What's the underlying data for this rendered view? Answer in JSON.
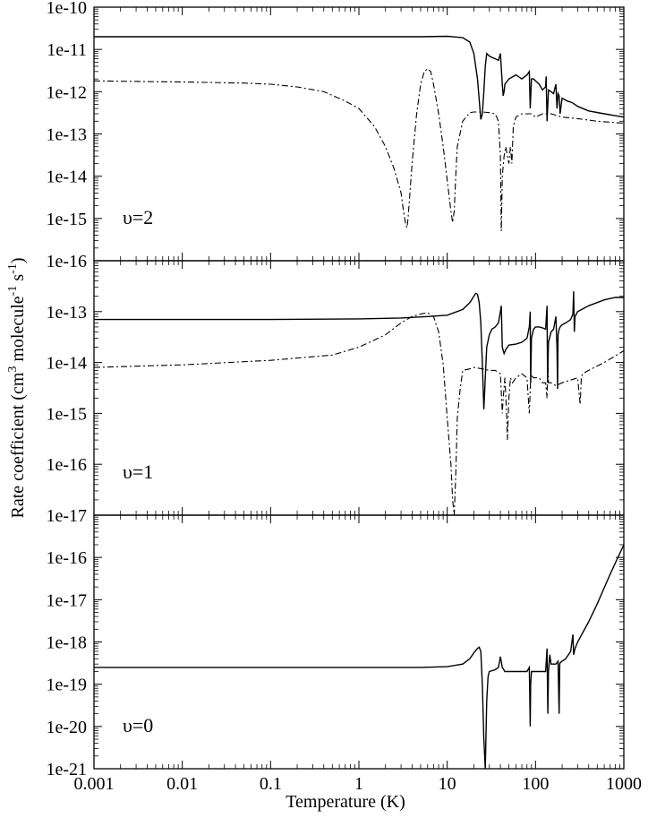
{
  "figure": {
    "ylabel_parts": [
      "Rate coefficient (cm",
      "3",
      " molecule",
      "-1",
      " s",
      "-1",
      ")"
    ]
  },
  "chart_data": [
    {
      "type": "line",
      "panel_label": "υ=2",
      "xlabel": "",
      "ylabel": "Rate coefficient (cm3 molecule-1 s-1)",
      "xscale": "log",
      "yscale": "log",
      "xlim": [
        0.001,
        1000
      ],
      "ylim": [
        1e-16,
        1e-10
      ],
      "ytick_labels": [
        "1e-16",
        "1e-15",
        "1e-14",
        "1e-13",
        "1e-12",
        "1e-11",
        "1e-10"
      ],
      "xtick_labels": [],
      "grid": false,
      "series": [
        {
          "style": "solid",
          "x": [
            0.001,
            0.01,
            0.1,
            1,
            5,
            10,
            15,
            18,
            20,
            22,
            24,
            25,
            26,
            27,
            28,
            30,
            32,
            35,
            38,
            40,
            42,
            43,
            44,
            45,
            50,
            60,
            70,
            80,
            85,
            87,
            90,
            95,
            100,
            110,
            120,
            130,
            132,
            135,
            140,
            150,
            160,
            170,
            175,
            180,
            185,
            190,
            200,
            230,
            260,
            300,
            400,
            600,
            1000
          ],
          "y": [
            2e-11,
            2e-11,
            2e-11,
            2e-11,
            2e-11,
            2.05e-11,
            1.9e-11,
            1.5e-11,
            8e-12,
            2e-12,
            2.2e-13,
            3e-13,
            1e-12,
            4e-12,
            8e-12,
            7e-12,
            6.5e-12,
            6e-12,
            5.5e-12,
            8e-12,
            1.5e-12,
            8e-13,
            1e-12,
            1.5e-12,
            2e-12,
            2.5e-12,
            2e-12,
            2.5e-12,
            3e-12,
            4e-13,
            2e-12,
            2e-12,
            1.8e-12,
            1.5e-12,
            1.1e-12,
            1.3e-12,
            2.3e-12,
            2e-13,
            1.1e-12,
            1e-12,
            9e-13,
            1.5e-12,
            4e-13,
            9e-13,
            8e-13,
            3e-13,
            7e-13,
            6e-13,
            5.5e-13,
            4.5e-13,
            3.5e-13,
            3e-13,
            2.5e-13
          ]
        },
        {
          "style": "dashdot",
          "x": [
            0.001,
            0.01,
            0.05,
            0.1,
            0.2,
            0.4,
            0.7,
            1,
            1.5,
            2,
            2.5,
            3,
            3.2,
            3.4,
            3.5,
            3.6,
            4,
            4.5,
            5,
            5.5,
            6,
            6.5,
            7,
            8,
            9,
            10,
            11,
            11.5,
            12,
            12.5,
            13,
            15,
            18,
            20,
            25,
            30,
            35,
            38,
            40,
            41,
            42,
            44,
            46,
            48,
            50,
            52,
            54,
            56,
            60,
            70,
            80,
            90,
            100,
            120,
            150,
            200,
            300,
            500,
            1000
          ],
          "y": [
            1.8e-12,
            1.7e-12,
            1.6e-12,
            1.5e-12,
            1.3e-12,
            1e-12,
            6e-13,
            4e-13,
            1.5e-13,
            5e-14,
            1.5e-14,
            4e-15,
            1.5e-15,
            7e-16,
            6e-16,
            1e-15,
            2e-14,
            3e-13,
            1.5e-12,
            3e-12,
            3.5e-12,
            3e-12,
            1.5e-12,
            3e-13,
            5e-14,
            8e-15,
            1.5e-15,
            8e-16,
            1.5e-15,
            1e-14,
            5e-14,
            2e-13,
            3.2e-13,
            3.3e-13,
            3.3e-13,
            3.2e-13,
            3e-13,
            2e-13,
            3e-14,
            5e-16,
            1e-14,
            3e-14,
            5e-14,
            3e-14,
            2e-14,
            5e-14,
            2e-14,
            1.5e-13,
            2.5e-13,
            3e-13,
            3e-13,
            3e-13,
            2.5e-13,
            3e-13,
            3e-13,
            2.5e-13,
            2.3e-13,
            2e-13,
            1.8e-13
          ]
        }
      ]
    },
    {
      "type": "line",
      "panel_label": "υ=1",
      "xlabel": "",
      "ylabel": "Rate coefficient (cm3 molecule-1 s-1)",
      "xscale": "log",
      "yscale": "log",
      "xlim": [
        0.001,
        1000
      ],
      "ylim": [
        1e-17,
        1e-12
      ],
      "ytick_labels": [
        "1e-17",
        "1e-16",
        "1e-15",
        "1e-14",
        "1e-13"
      ],
      "xtick_labels": [],
      "grid": false,
      "series": [
        {
          "style": "solid",
          "x": [
            0.001,
            0.01,
            0.1,
            1,
            3,
            6,
            10,
            15,
            18,
            20,
            21,
            22,
            23,
            24,
            25,
            26,
            27,
            28,
            30,
            32,
            35,
            38,
            40,
            41,
            42,
            44,
            46,
            50,
            60,
            70,
            80,
            85,
            87,
            88,
            90,
            95,
            100,
            110,
            120,
            130,
            135,
            137,
            140,
            150,
            160,
            170,
            175,
            178,
            180,
            185,
            190,
            200,
            220,
            250,
            265,
            270,
            275,
            280,
            300,
            400,
            600,
            800,
            1000
          ],
          "y": [
            7e-14,
            7e-14,
            7e-14,
            7.2e-14,
            7.5e-14,
            8e-14,
            8.5e-14,
            1.1e-13,
            1.5e-13,
            2e-13,
            2.3e-13,
            2.2e-13,
            1.5e-13,
            6e-14,
            1e-14,
            1.2e-15,
            5e-15,
            2e-14,
            3.5e-14,
            4.5e-14,
            5e-14,
            6e-14,
            1e-13,
            1.3e-13,
            2e-14,
            1.5e-14,
            1.8e-14,
            2.2e-14,
            2.3e-14,
            2.5e-14,
            3e-14,
            5e-14,
            1e-13,
            4e-15,
            3e-14,
            4.5e-14,
            5e-14,
            5e-14,
            4.8e-14,
            4.5e-14,
            1.3e-13,
            4e-15,
            2.5e-14,
            4e-14,
            4.5e-14,
            8e-14,
            2e-14,
            3e-15,
            3.5e-14,
            4.5e-14,
            5e-14,
            5.5e-14,
            6e-14,
            7e-14,
            9e-14,
            2.5e-13,
            4e-14,
            8e-14,
            1e-13,
            1.3e-13,
            1.7e-13,
            1.9e-13,
            1.9e-13
          ]
        },
        {
          "style": "dashdot",
          "x": [
            0.001,
            0.01,
            0.1,
            0.5,
            1,
            2,
            3,
            4,
            5,
            6,
            7,
            8,
            9,
            10,
            11,
            11.5,
            12,
            12.5,
            13,
            14,
            15,
            18,
            20,
            25,
            30,
            35,
            40,
            42,
            43,
            45,
            47,
            48,
            50,
            52,
            55,
            60,
            70,
            80,
            85,
            88,
            90,
            95,
            100,
            110,
            120,
            130,
            135,
            138,
            140,
            150,
            170,
            200,
            300,
            320,
            330,
            340,
            400,
            600,
            1000
          ],
          "y": [
            8e-15,
            9e-15,
            1.1e-14,
            1.4e-14,
            2e-14,
            3.5e-14,
            6e-14,
            8e-14,
            9e-14,
            9.5e-14,
            8e-14,
            4e-14,
            9e-15,
            8e-16,
            1e-16,
            2e-17,
            1e-17,
            6e-17,
            8e-16,
            3e-15,
            7e-15,
            7.5e-15,
            8e-15,
            7.5e-15,
            7e-15,
            7e-15,
            6e-15,
            1e-15,
            2e-15,
            5e-15,
            1e-15,
            3e-16,
            2e-15,
            5e-15,
            4e-15,
            5e-15,
            6e-15,
            5e-15,
            1e-15,
            5e-15,
            5.5e-15,
            5e-15,
            5e-15,
            5e-15,
            4e-15,
            4e-15,
            2e-15,
            1.2e-14,
            4e-15,
            4e-15,
            3.5e-15,
            4e-15,
            5e-15,
            1.5e-15,
            5e-15,
            6e-15,
            7e-15,
            1e-14,
            1.7e-14
          ]
        }
      ]
    },
    {
      "type": "line",
      "panel_label": "υ=0",
      "xlabel": "Temperature (K)",
      "ylabel": "Rate coefficient (cm3 molecule-1 s-1)",
      "xscale": "log",
      "yscale": "log",
      "xlim": [
        0.001,
        1000
      ],
      "ylim": [
        1e-21,
        1e-15
      ],
      "ytick_labels": [
        "1e-21",
        "1e-20",
        "1e-19",
        "1e-18",
        "1e-17",
        "1e-16"
      ],
      "xtick_labels": [
        "0.001",
        "0.01",
        "0.1",
        "1",
        "10",
        "100",
        "1000"
      ],
      "grid": false,
      "series": [
        {
          "style": "solid",
          "x": [
            0.001,
            0.01,
            0.1,
            1,
            5,
            10,
            15,
            18,
            20,
            22,
            23,
            24,
            25,
            26,
            27,
            28,
            29,
            30,
            35,
            38,
            40,
            42,
            45,
            50,
            60,
            70,
            80,
            85,
            87,
            88,
            90,
            95,
            100,
            110,
            120,
            130,
            135,
            138,
            140,
            145,
            150,
            160,
            170,
            180,
            185,
            188,
            190,
            200,
            220,
            250,
            265,
            270,
            275,
            280,
            300,
            400,
            500,
            700,
            1000
          ],
          "y": [
            2.5e-19,
            2.5e-19,
            2.5e-19,
            2.5e-19,
            2.5e-19,
            2.6e-19,
            3e-19,
            4e-19,
            5.5e-19,
            7e-19,
            7.5e-19,
            6e-19,
            1e-19,
            5e-21,
            1e-21,
            4e-20,
            1.5e-19,
            2e-19,
            2.2e-19,
            2.5e-19,
            4.5e-19,
            2.5e-19,
            2e-19,
            2e-19,
            2e-19,
            2e-19,
            2e-19,
            2.5e-19,
            1e-20,
            1e-19,
            2e-19,
            2e-19,
            2e-19,
            2e-19,
            2e-19,
            2e-19,
            7e-19,
            2e-20,
            2e-19,
            5e-19,
            3e-19,
            3e-19,
            3e-19,
            3.5e-19,
            2e-20,
            3e-19,
            3.2e-19,
            3.5e-19,
            4e-19,
            6e-19,
            1.5e-18,
            5e-19,
            6e-19,
            7e-19,
            1e-18,
            3e-18,
            8e-18,
            4e-17,
            2e-16
          ]
        }
      ]
    }
  ]
}
